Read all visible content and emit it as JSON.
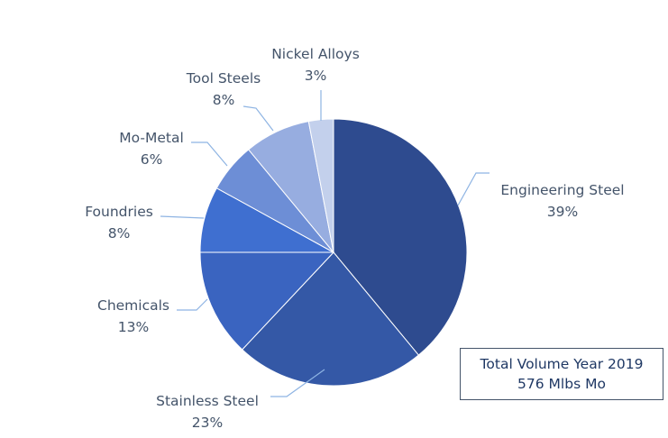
{
  "chart_data": {
    "type": "pie",
    "categories": [
      "Engineering Steel",
      "Stainless Steel",
      "Chemicals",
      "Foundries",
      "Mo-Metal",
      "Tool Steels",
      "Nickel Alloys"
    ],
    "values": [
      39,
      23,
      13,
      8,
      6,
      8,
      3
    ],
    "labels": [
      "39%",
      "23%",
      "13%",
      "8%",
      "6%",
      "8%",
      "3%"
    ],
    "colors": [
      "#2e4b8f",
      "#3458a6",
      "#3a64c0",
      "#3f6fd0",
      "#6d8ed6",
      "#97ade0",
      "#c3d0ec"
    ],
    "start_angle_deg": 0,
    "direction": "clockwise",
    "annotation": [
      "Total Volume Year 2019",
      "576 Mlbs Mo"
    ]
  }
}
